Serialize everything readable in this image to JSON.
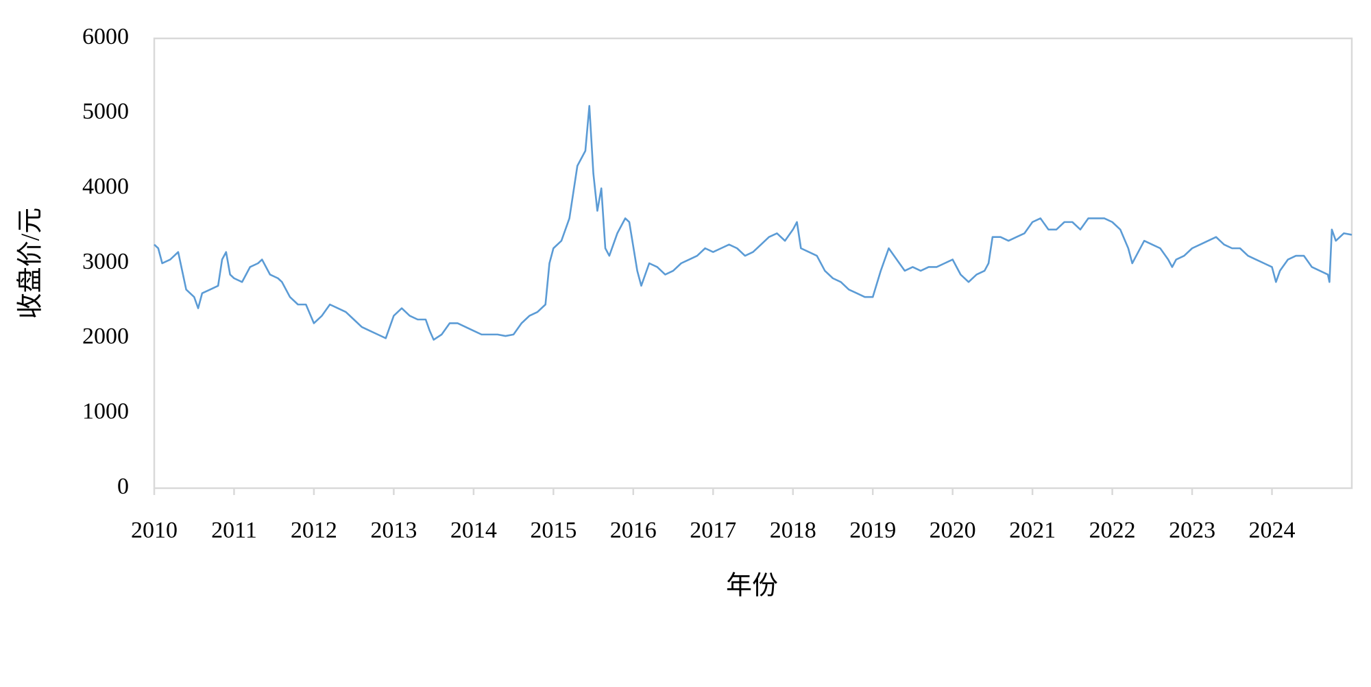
{
  "chart_data": {
    "type": "line",
    "x_label": "年份",
    "y_label": "收盘价/元",
    "xlim": [
      2010,
      2025
    ],
    "xticks": [
      2010,
      2011,
      2012,
      2013,
      2014,
      2015,
      2016,
      2017,
      2018,
      2019,
      2020,
      2021,
      2022,
      2023,
      2024
    ],
    "ylim": [
      0,
      6000
    ],
    "yticks": [
      0,
      1000,
      2000,
      3000,
      4000,
      5000,
      6000
    ],
    "grid": false,
    "x": [
      2010.0,
      2010.05,
      2010.1,
      2010.2,
      2010.3,
      2010.35,
      2010.4,
      2010.5,
      2010.55,
      2010.6,
      2010.7,
      2010.8,
      2010.85,
      2010.9,
      2010.95,
      2011.0,
      2011.1,
      2011.2,
      2011.3,
      2011.35,
      2011.45,
      2011.55,
      2011.6,
      2011.7,
      2011.8,
      2011.9,
      2012.0,
      2012.1,
      2012.2,
      2012.3,
      2012.4,
      2012.5,
      2012.6,
      2012.7,
      2012.8,
      2012.9,
      2012.95,
      2013.0,
      2013.1,
      2013.2,
      2013.3,
      2013.4,
      2013.45,
      2013.5,
      2013.6,
      2013.7,
      2013.8,
      2013.9,
      2014.0,
      2014.1,
      2014.2,
      2014.3,
      2014.4,
      2014.5,
      2014.6,
      2014.7,
      2014.8,
      2014.9,
      2014.95,
      2015.0,
      2015.1,
      2015.2,
      2015.3,
      2015.4,
      2015.45,
      2015.5,
      2015.55,
      2015.6,
      2015.65,
      2015.7,
      2015.8,
      2015.9,
      2015.95,
      2016.05,
      2016.1,
      2016.2,
      2016.3,
      2016.4,
      2016.5,
      2016.6,
      2016.7,
      2016.8,
      2016.9,
      2017.0,
      2017.1,
      2017.2,
      2017.3,
      2017.4,
      2017.5,
      2017.6,
      2017.7,
      2017.8,
      2017.9,
      2018.0,
      2018.05,
      2018.1,
      2018.2,
      2018.3,
      2018.4,
      2018.5,
      2018.6,
      2018.7,
      2018.8,
      2018.9,
      2019.0,
      2019.1,
      2019.2,
      2019.3,
      2019.4,
      2019.5,
      2019.6,
      2019.7,
      2019.8,
      2019.9,
      2020.0,
      2020.1,
      2020.2,
      2020.3,
      2020.4,
      2020.45,
      2020.5,
      2020.6,
      2020.7,
      2020.8,
      2020.9,
      2021.0,
      2021.1,
      2021.2,
      2021.3,
      2021.4,
      2021.5,
      2021.6,
      2021.7,
      2021.8,
      2021.9,
      2022.0,
      2022.1,
      2022.2,
      2022.25,
      2022.3,
      2022.4,
      2022.5,
      2022.6,
      2022.7,
      2022.75,
      2022.8,
      2022.9,
      2023.0,
      2023.1,
      2023.2,
      2023.3,
      2023.4,
      2023.5,
      2023.6,
      2023.7,
      2023.8,
      2023.9,
      2024.0,
      2024.05,
      2024.1,
      2024.2,
      2024.3,
      2024.4,
      2024.5,
      2024.6,
      2024.7,
      2024.72,
      2024.75,
      2024.8,
      2024.9,
      2025.0
    ],
    "series": [
      {
        "color": "#5b9bd5",
        "values": [
          3250,
          3200,
          3000,
          3050,
          3150,
          2900,
          2650,
          2550,
          2400,
          2600,
          2650,
          2700,
          3050,
          3150,
          2850,
          2800,
          2750,
          2950,
          3000,
          3050,
          2850,
          2800,
          2750,
          2550,
          2450,
          2450,
          2200,
          2300,
          2450,
          2400,
          2350,
          2250,
          2150,
          2100,
          2050,
          2000,
          2150,
          2300,
          2400,
          2300,
          2250,
          2250,
          2100,
          1980,
          2050,
          2200,
          2200,
          2150,
          2100,
          2050,
          2050,
          2050,
          2030,
          2050,
          2200,
          2300,
          2350,
          2450,
          3000,
          3200,
          3300,
          3600,
          4300,
          4500,
          5100,
          4200,
          3700,
          4000,
          3200,
          3100,
          3400,
          3600,
          3550,
          2900,
          2700,
          3000,
          2950,
          2850,
          2900,
          3000,
          3050,
          3100,
          3200,
          3150,
          3200,
          3250,
          3200,
          3100,
          3150,
          3250,
          3350,
          3400,
          3300,
          3450,
          3550,
          3200,
          3150,
          3100,
          2900,
          2800,
          2750,
          2650,
          2600,
          2550,
          2550,
          2900,
          3200,
          3050,
          2900,
          2950,
          2900,
          2950,
          2950,
          3000,
          3050,
          2850,
          2750,
          2850,
          2900,
          3000,
          3350,
          3350,
          3300,
          3350,
          3400,
          3550,
          3600,
          3450,
          3450,
          3550,
          3550,
          3450,
          3600,
          3600,
          3600,
          3550,
          3450,
          3200,
          3000,
          3100,
          3300,
          3250,
          3200,
          3050,
          2950,
          3050,
          3100,
          3200,
          3250,
          3300,
          3350,
          3250,
          3200,
          3200,
          3100,
          3050,
          3000,
          2950,
          2750,
          2900,
          3050,
          3100,
          3100,
          2950,
          2900,
          2850,
          2750,
          3450,
          3300,
          3400,
          3380
        ]
      }
    ]
  }
}
